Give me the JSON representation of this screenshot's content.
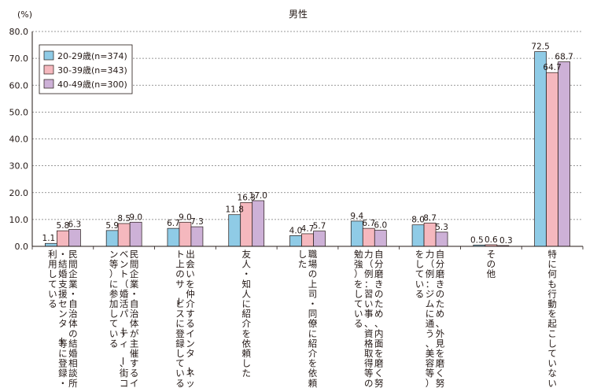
{
  "chart_data": {
    "type": "bar",
    "title": "男性",
    "ylabel": "(%)",
    "xlabel": "",
    "ylim": [
      0,
      80
    ],
    "yticks": [
      "0.0",
      "10.0",
      "20.0",
      "30.0",
      "40.0",
      "50.0",
      "60.0",
      "70.0",
      "80.0"
    ],
    "grid": true,
    "legend_position": "top-left",
    "categories": [
      "民間企業・自治体の結婚相談所・結婚支援センター等に登録・利用している",
      "民間企業・自治体が主催するイベント（婚活パーティー、街コン等）に参加している",
      "出会いを仲介するインターネット上のサービスに登録している",
      "友人・知人に紹介を依頼した",
      "職場の上司・同僚に紹介を依頼した",
      "自分磨きのため、内面を磨く努力（例：習い事、資格取得等の勉強）をしている",
      "自分磨きのため、外見を磨く努力（例：ジムに通う、美容等）をしている",
      "その他",
      "特に何も行動を起こしていない"
    ],
    "series": [
      {
        "name": "20-29歳(n=374)",
        "color": "#8fcbe6",
        "values": [
          1.1,
          5.9,
          6.7,
          11.8,
          4.0,
          9.4,
          8.0,
          0.5,
          72.5
        ],
        "labels": [
          "1.1",
          "5.9",
          "6.7",
          "11.8",
          "4.0",
          "9.4",
          "8.0",
          "0.5",
          "72.5"
        ]
      },
      {
        "name": "30-39歳(n=343)",
        "color": "#f5b8be",
        "values": [
          5.8,
          8.5,
          9.0,
          16.3,
          4.7,
          6.7,
          8.7,
          0.6,
          64.7
        ],
        "labels": [
          "5.8",
          "8.5",
          "9.0",
          "16.3",
          "4.7",
          "6.7",
          "8.7",
          "0.6",
          "64.7"
        ]
      },
      {
        "name": "40-49歳(n=300)",
        "color": "#cdb1d7",
        "values": [
          6.3,
          9.0,
          7.3,
          17.0,
          5.7,
          6.0,
          5.3,
          0.3,
          68.7
        ],
        "labels": [
          "6.3",
          "9.0",
          "7.3",
          "17.0",
          "5.7",
          "6.0",
          "5.3",
          "0.3",
          "68.7"
        ]
      }
    ]
  }
}
